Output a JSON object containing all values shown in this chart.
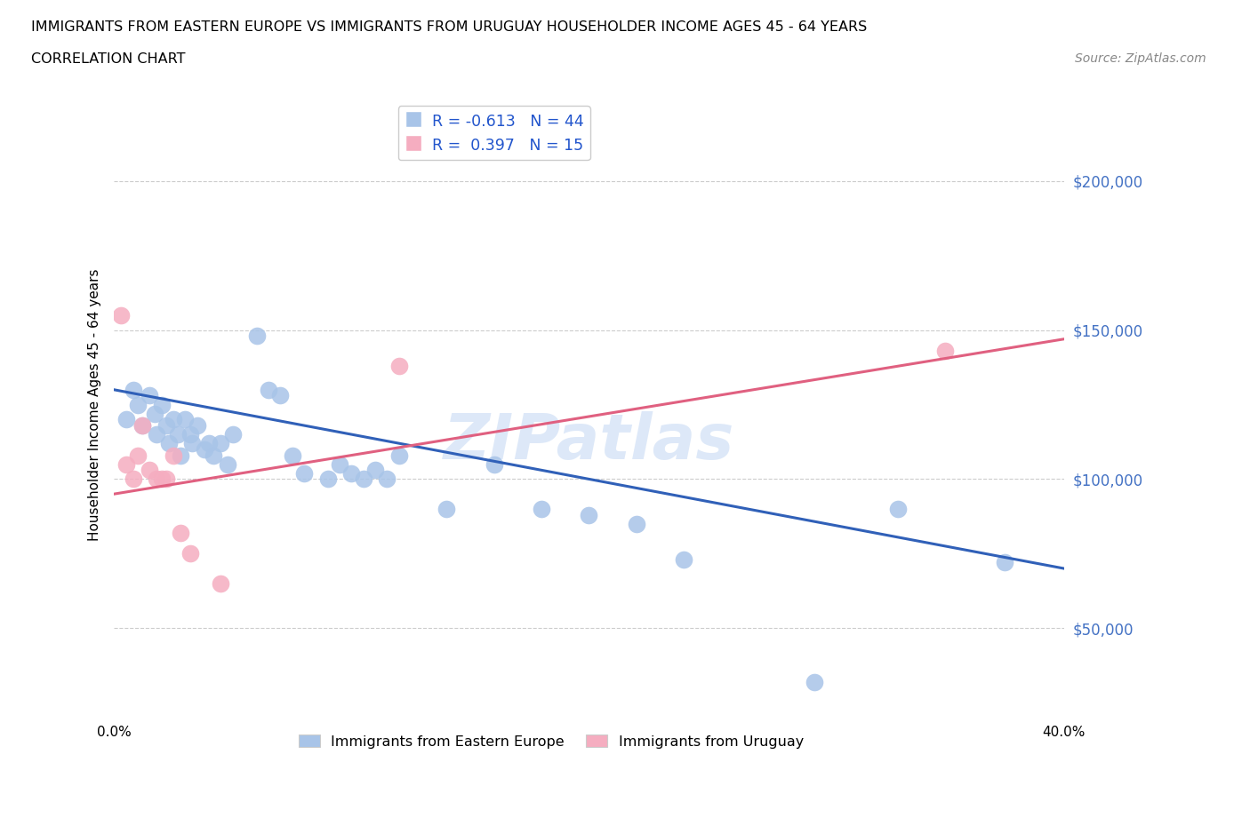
{
  "title_line1": "IMMIGRANTS FROM EASTERN EUROPE VS IMMIGRANTS FROM URUGUAY HOUSEHOLDER INCOME AGES 45 - 64 YEARS",
  "title_line2": "CORRELATION CHART",
  "source_text": "Source: ZipAtlas.com",
  "ylabel": "Householder Income Ages 45 - 64 years",
  "xlim": [
    0.0,
    0.4
  ],
  "ylim": [
    20000,
    230000
  ],
  "yticks": [
    50000,
    100000,
    150000,
    200000
  ],
  "ytick_labels": [
    "$50,000",
    "$100,000",
    "$150,000",
    "$200,000"
  ],
  "xticks": [
    0.0,
    0.05,
    0.1,
    0.15,
    0.2,
    0.25,
    0.3,
    0.35,
    0.4
  ],
  "xtick_labels": [
    "0.0%",
    "",
    "",
    "",
    "",
    "",
    "",
    "",
    "40.0%"
  ],
  "blue_color": "#a8c4e8",
  "pink_color": "#f5adc0",
  "blue_line_color": "#3060b8",
  "pink_line_color": "#e06080",
  "legend_R_blue": "R = -0.613",
  "legend_N_blue": "N = 44",
  "legend_R_pink": "R =  0.397",
  "legend_N_pink": "N = 15",
  "legend_label_blue": "Immigrants from Eastern Europe",
  "legend_label_pink": "Immigrants from Uruguay",
  "watermark": "ZIPatlas",
  "blue_line_x0": 0.0,
  "blue_line_y0": 130000,
  "blue_line_x1": 0.4,
  "blue_line_y1": 70000,
  "pink_line_x0": 0.0,
  "pink_line_y0": 95000,
  "pink_line_x1": 0.4,
  "pink_line_y1": 147000,
  "blue_x": [
    0.005,
    0.008,
    0.01,
    0.012,
    0.015,
    0.017,
    0.018,
    0.02,
    0.022,
    0.023,
    0.025,
    0.027,
    0.028,
    0.03,
    0.032,
    0.033,
    0.035,
    0.038,
    0.04,
    0.042,
    0.045,
    0.048,
    0.05,
    0.06,
    0.065,
    0.07,
    0.075,
    0.08,
    0.09,
    0.095,
    0.1,
    0.105,
    0.11,
    0.115,
    0.12,
    0.14,
    0.16,
    0.18,
    0.2,
    0.22,
    0.24,
    0.295,
    0.33,
    0.375
  ],
  "blue_y": [
    120000,
    130000,
    125000,
    118000,
    128000,
    122000,
    115000,
    125000,
    118000,
    112000,
    120000,
    115000,
    108000,
    120000,
    115000,
    112000,
    118000,
    110000,
    112000,
    108000,
    112000,
    105000,
    115000,
    148000,
    130000,
    128000,
    108000,
    102000,
    100000,
    105000,
    102000,
    100000,
    103000,
    100000,
    108000,
    90000,
    105000,
    90000,
    88000,
    85000,
    73000,
    32000,
    90000,
    72000
  ],
  "pink_x": [
    0.003,
    0.005,
    0.008,
    0.01,
    0.012,
    0.015,
    0.018,
    0.02,
    0.022,
    0.025,
    0.028,
    0.032,
    0.045,
    0.12,
    0.35
  ],
  "pink_y": [
    155000,
    105000,
    100000,
    108000,
    118000,
    103000,
    100000,
    100000,
    100000,
    108000,
    82000,
    75000,
    65000,
    138000,
    143000
  ]
}
